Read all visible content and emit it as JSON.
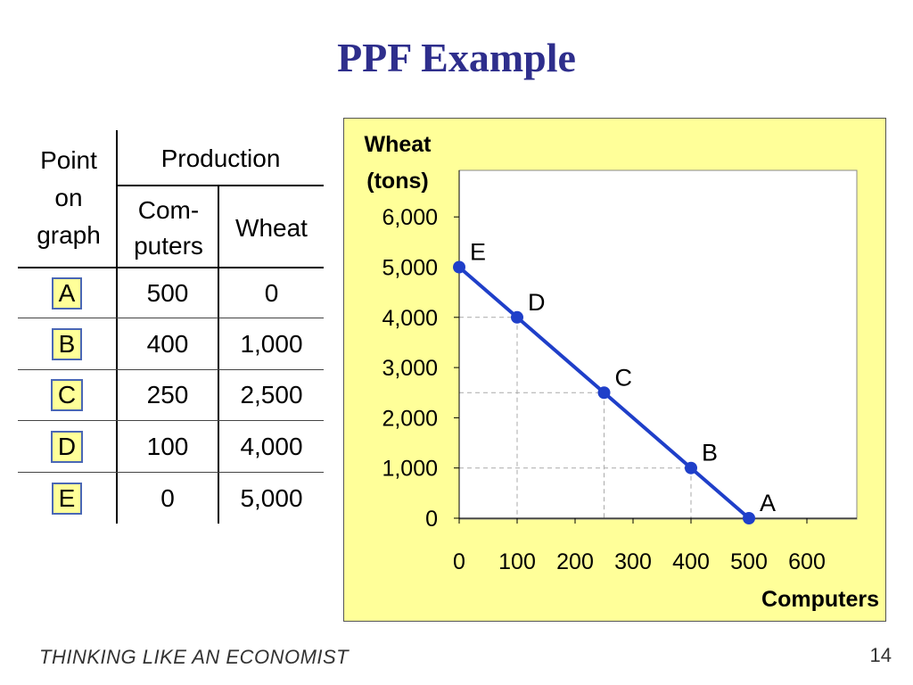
{
  "slide": {
    "title": "PPF Example",
    "footer": "THINKING LIKE AN ECONOMIST",
    "page_number": "14"
  },
  "table": {
    "point_header": "Point on graph",
    "production_header": "Production",
    "col_computers": "Com- puters",
    "col_wheat": "Wheat",
    "rows": [
      {
        "point": "A",
        "computers": "500",
        "wheat": "0"
      },
      {
        "point": "B",
        "computers": "400",
        "wheat": "1,000"
      },
      {
        "point": "C",
        "computers": "250",
        "wheat": "2,500"
      },
      {
        "point": "D",
        "computers": "100",
        "wheat": "4,000"
      },
      {
        "point": "E",
        "computers": "0",
        "wheat": "5,000"
      }
    ]
  },
  "colors": {
    "panel_bg": "#ffff99",
    "line": "#1f3fc9",
    "title": "#2e2e8c",
    "box_border": "#4a67b5"
  },
  "chart_data": {
    "type": "line",
    "title": "",
    "xlabel": "Computers",
    "ylabel": "Wheat (tons)",
    "xlim": [
      0,
      700
    ],
    "ylim": [
      0,
      7000
    ],
    "xticks": [
      0,
      100,
      200,
      300,
      400,
      500,
      600
    ],
    "xtick_labels": [
      "0",
      "100",
      "200",
      "300",
      "400",
      "500",
      "600"
    ],
    "yticks": [
      0,
      1000,
      2000,
      3000,
      4000,
      5000,
      6000
    ],
    "ytick_labels": [
      "0",
      "1,000",
      "2,000",
      "3,000",
      "4,000",
      "5,000",
      "6,000"
    ],
    "series": [
      {
        "name": "PPF",
        "points": [
          {
            "label": "E",
            "x": 0,
            "y": 5000
          },
          {
            "label": "D",
            "x": 100,
            "y": 4000
          },
          {
            "label": "C",
            "x": 250,
            "y": 2500
          },
          {
            "label": "B",
            "x": 400,
            "y": 1000
          },
          {
            "label": "A",
            "x": 500,
            "y": 0
          }
        ]
      }
    ]
  }
}
